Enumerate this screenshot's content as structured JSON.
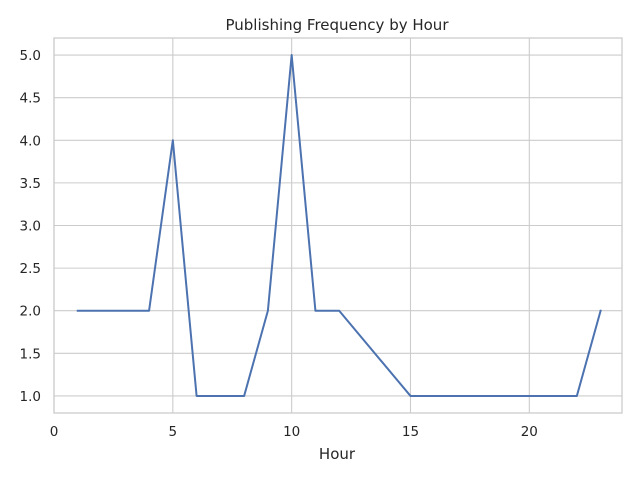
{
  "chart_data": {
    "type": "line",
    "title": "Publishing Frequency by Hour",
    "xlabel": "Hour",
    "ylabel": "",
    "xlim": [
      0,
      23.9
    ],
    "ylim": [
      0.8,
      5.2
    ],
    "x_ticks": [
      0,
      5,
      10,
      15,
      20
    ],
    "y_ticks": [
      1.0,
      1.5,
      2.0,
      2.5,
      3.0,
      3.5,
      4.0,
      4.5,
      5.0
    ],
    "x_tick_labels": [
      "0",
      "5",
      "10",
      "15",
      "20"
    ],
    "y_tick_labels": [
      "1.0",
      "1.5",
      "2.0",
      "2.5",
      "3.0",
      "3.5",
      "4.0",
      "4.5",
      "5.0"
    ],
    "grid": true,
    "series": [
      {
        "color": "#4c72b0",
        "x": [
          1,
          4,
          5,
          6,
          8,
          9,
          10,
          11,
          12,
          15,
          22,
          23
        ],
        "y": [
          2,
          2,
          4,
          1,
          1,
          2,
          5,
          2,
          2,
          1,
          1,
          2
        ]
      }
    ]
  }
}
